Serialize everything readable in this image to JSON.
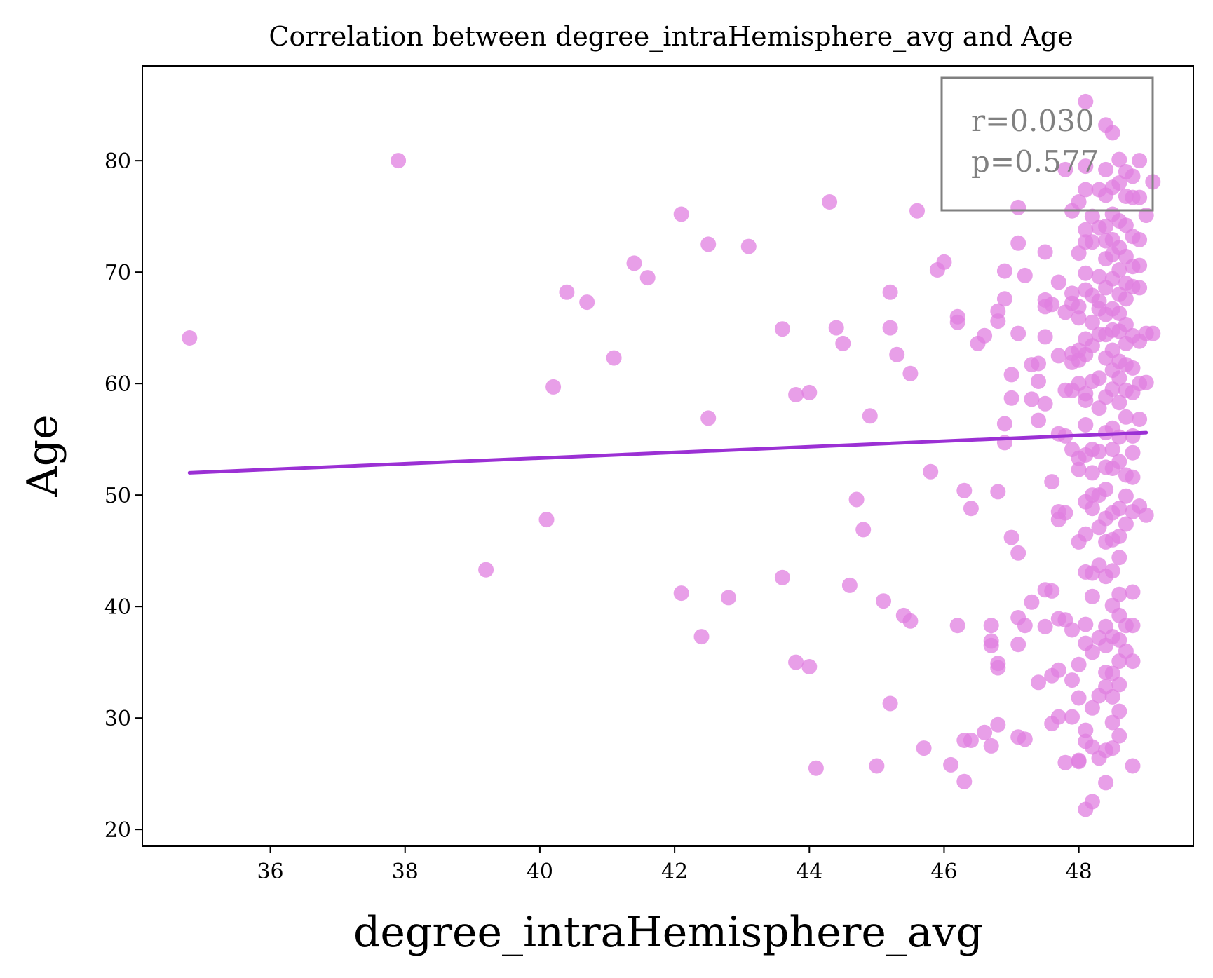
{
  "chart_data": {
    "type": "scatter",
    "title": "Correlation between degree_intraHemisphere_avg and Age",
    "xlabel": "degree_intraHemisphere_avg",
    "ylabel": "Age",
    "xlim": [
      34.1,
      49.7
    ],
    "ylim": [
      18.5,
      88.5
    ],
    "xticks": [
      36,
      38,
      40,
      42,
      44,
      46,
      48
    ],
    "yticks": [
      20,
      30,
      40,
      50,
      60,
      70,
      80
    ],
    "grid": false,
    "annotation": {
      "lines": [
        "r=0.030",
        "p=0.577"
      ],
      "placement": "top-right"
    },
    "colors": {
      "points": "#e07fe0",
      "fit_line": "#9b30d4",
      "annotation": "#808080"
    },
    "fit_line": {
      "x": [
        34.8,
        49.0
      ],
      "y": [
        52.0,
        55.6
      ]
    },
    "points": [
      [
        34.8,
        64.1
      ],
      [
        37.9,
        80.0
      ],
      [
        39.2,
        43.3
      ],
      [
        40.1,
        47.8
      ],
      [
        40.2,
        59.7
      ],
      [
        40.4,
        68.2
      ],
      [
        40.7,
        67.3
      ],
      [
        41.1,
        62.3
      ],
      [
        41.4,
        70.8
      ],
      [
        41.6,
        69.5
      ],
      [
        42.1,
        75.2
      ],
      [
        42.1,
        41.2
      ],
      [
        42.4,
        37.3
      ],
      [
        42.5,
        72.5
      ],
      [
        42.5,
        56.9
      ],
      [
        42.8,
        40.8
      ],
      [
        43.1,
        72.3
      ],
      [
        43.6,
        64.9
      ],
      [
        43.6,
        42.6
      ],
      [
        43.8,
        35.0
      ],
      [
        43.8,
        59.0
      ],
      [
        44.0,
        59.2
      ],
      [
        44.0,
        34.6
      ],
      [
        44.1,
        25.5
      ],
      [
        44.3,
        76.3
      ],
      [
        44.4,
        65.0
      ],
      [
        44.5,
        63.6
      ],
      [
        44.6,
        41.9
      ],
      [
        44.7,
        49.6
      ],
      [
        44.8,
        46.9
      ],
      [
        44.9,
        57.1
      ],
      [
        45.0,
        25.7
      ],
      [
        45.1,
        40.5
      ],
      [
        45.2,
        68.2
      ],
      [
        45.2,
        65.0
      ],
      [
        45.2,
        31.3
      ],
      [
        45.3,
        62.6
      ],
      [
        45.4,
        39.2
      ],
      [
        45.5,
        38.7
      ],
      [
        45.5,
        60.9
      ],
      [
        45.6,
        75.5
      ],
      [
        45.7,
        27.3
      ],
      [
        45.8,
        52.1
      ],
      [
        45.9,
        70.2
      ],
      [
        46.0,
        70.9
      ],
      [
        46.1,
        25.8
      ],
      [
        46.2,
        66.0
      ],
      [
        46.2,
        65.5
      ],
      [
        46.2,
        38.3
      ],
      [
        46.3,
        50.4
      ],
      [
        46.3,
        24.3
      ],
      [
        46.3,
        28.0
      ],
      [
        46.4,
        48.8
      ],
      [
        46.4,
        28.0
      ],
      [
        46.5,
        63.6
      ],
      [
        46.6,
        64.3
      ],
      [
        46.6,
        28.7
      ],
      [
        46.7,
        36.5
      ],
      [
        46.7,
        36.9
      ],
      [
        46.7,
        38.3
      ],
      [
        46.7,
        27.5
      ],
      [
        46.8,
        65.6
      ],
      [
        46.8,
        66.5
      ],
      [
        46.8,
        34.9
      ],
      [
        46.8,
        34.5
      ],
      [
        46.8,
        29.4
      ],
      [
        46.8,
        50.3
      ],
      [
        46.9,
        70.1
      ],
      [
        46.9,
        67.6
      ],
      [
        46.9,
        56.4
      ],
      [
        46.9,
        54.7
      ],
      [
        47.0,
        60.8
      ],
      [
        47.0,
        46.2
      ],
      [
        47.0,
        58.7
      ],
      [
        47.1,
        72.6
      ],
      [
        47.1,
        75.8
      ],
      [
        47.1,
        64.5
      ],
      [
        47.1,
        44.8
      ],
      [
        47.1,
        36.6
      ],
      [
        47.1,
        39.0
      ],
      [
        47.1,
        28.3
      ],
      [
        47.2,
        69.7
      ],
      [
        47.2,
        28.1
      ],
      [
        47.2,
        38.3
      ],
      [
        47.3,
        61.7
      ],
      [
        47.3,
        58.6
      ],
      [
        47.3,
        40.4
      ],
      [
        47.4,
        61.8
      ],
      [
        47.4,
        60.2
      ],
      [
        47.4,
        56.7
      ],
      [
        47.4,
        33.2
      ],
      [
        47.5,
        71.8
      ],
      [
        47.5,
        67.5
      ],
      [
        47.5,
        66.9
      ],
      [
        47.5,
        64.2
      ],
      [
        47.5,
        58.2
      ],
      [
        47.5,
        41.5
      ],
      [
        47.5,
        38.2
      ],
      [
        47.6,
        51.2
      ],
      [
        47.6,
        29.5
      ],
      [
        47.6,
        33.8
      ],
      [
        47.6,
        41.4
      ],
      [
        47.6,
        67.1
      ],
      [
        47.7,
        69.1
      ],
      [
        47.7,
        62.5
      ],
      [
        47.7,
        55.5
      ],
      [
        47.7,
        48.5
      ],
      [
        47.7,
        47.8
      ],
      [
        47.7,
        38.9
      ],
      [
        47.7,
        34.3
      ],
      [
        47.7,
        30.1
      ],
      [
        47.8,
        66.4
      ],
      [
        47.8,
        59.4
      ],
      [
        47.8,
        55.3
      ],
      [
        47.8,
        48.4
      ],
      [
        47.8,
        38.8
      ],
      [
        47.8,
        26.0
      ],
      [
        47.8,
        79.2
      ],
      [
        47.9,
        75.5
      ],
      [
        47.9,
        68.1
      ],
      [
        47.9,
        67.2
      ],
      [
        47.9,
        62.7
      ],
      [
        47.9,
        59.4
      ],
      [
        47.9,
        54.1
      ],
      [
        47.9,
        37.9
      ],
      [
        47.9,
        33.4
      ],
      [
        47.9,
        30.1
      ],
      [
        48.0,
        76.3
      ],
      [
        48.0,
        71.7
      ],
      [
        48.0,
        65.9
      ],
      [
        48.0,
        63.0
      ],
      [
        48.0,
        62.1
      ],
      [
        48.0,
        60.0
      ],
      [
        48.0,
        53.3
      ],
      [
        48.0,
        52.3
      ],
      [
        48.0,
        45.8
      ],
      [
        48.0,
        34.8
      ],
      [
        48.0,
        31.8
      ],
      [
        48.0,
        26.1
      ],
      [
        48.0,
        26.2
      ],
      [
        48.1,
        85.3
      ],
      [
        48.1,
        79.5
      ],
      [
        48.1,
        77.4
      ],
      [
        48.1,
        73.8
      ],
      [
        48.1,
        72.7
      ],
      [
        48.1,
        69.9
      ],
      [
        48.1,
        68.4
      ],
      [
        48.1,
        64.0
      ],
      [
        48.1,
        62.6
      ],
      [
        48.1,
        59.1
      ],
      [
        48.1,
        58.5
      ],
      [
        48.1,
        56.3
      ],
      [
        48.1,
        53.6
      ],
      [
        48.1,
        49.4
      ],
      [
        48.1,
        46.5
      ],
      [
        48.1,
        43.1
      ],
      [
        48.1,
        38.4
      ],
      [
        48.1,
        36.7
      ],
      [
        48.1,
        28.9
      ],
      [
        48.1,
        27.9
      ],
      [
        48.1,
        21.8
      ],
      [
        48.2,
        75.0
      ],
      [
        48.2,
        72.7
      ],
      [
        48.2,
        67.9
      ],
      [
        48.2,
        65.5
      ],
      [
        48.2,
        63.4
      ],
      [
        48.2,
        60.2
      ],
      [
        48.2,
        54.1
      ],
      [
        48.2,
        52.0
      ],
      [
        48.2,
        50.0
      ],
      [
        48.2,
        48.8
      ],
      [
        48.2,
        43.0
      ],
      [
        48.2,
        40.9
      ],
      [
        48.2,
        35.9
      ],
      [
        48.2,
        30.9
      ],
      [
        48.2,
        27.4
      ],
      [
        48.2,
        22.5
      ],
      [
        48.3,
        77.4
      ],
      [
        48.3,
        74.0
      ],
      [
        48.3,
        69.6
      ],
      [
        48.3,
        67.4
      ],
      [
        48.3,
        66.7
      ],
      [
        48.3,
        64.4
      ],
      [
        48.3,
        60.5
      ],
      [
        48.3,
        57.8
      ],
      [
        48.3,
        53.9
      ],
      [
        48.3,
        50.0
      ],
      [
        48.3,
        47.1
      ],
      [
        48.3,
        43.7
      ],
      [
        48.3,
        37.2
      ],
      [
        48.3,
        32.0
      ],
      [
        48.3,
        26.4
      ],
      [
        48.4,
        83.2
      ],
      [
        48.4,
        79.2
      ],
      [
        48.4,
        76.9
      ],
      [
        48.4,
        74.1
      ],
      [
        48.4,
        72.8
      ],
      [
        48.4,
        71.2
      ],
      [
        48.4,
        68.6
      ],
      [
        48.4,
        66.2
      ],
      [
        48.4,
        64.4
      ],
      [
        48.4,
        62.3
      ],
      [
        48.4,
        58.8
      ],
      [
        48.4,
        55.6
      ],
      [
        48.4,
        52.5
      ],
      [
        48.4,
        50.5
      ],
      [
        48.4,
        47.9
      ],
      [
        48.4,
        45.8
      ],
      [
        48.4,
        42.7
      ],
      [
        48.4,
        38.2
      ],
      [
        48.4,
        36.5
      ],
      [
        48.4,
        34.1
      ],
      [
        48.4,
        32.8
      ],
      [
        48.4,
        27.1
      ],
      [
        48.4,
        24.2
      ],
      [
        48.5,
        82.5
      ],
      [
        48.5,
        77.6
      ],
      [
        48.5,
        75.2
      ],
      [
        48.5,
        72.9
      ],
      [
        48.5,
        71.6
      ],
      [
        48.5,
        69.4
      ],
      [
        48.5,
        66.7
      ],
      [
        48.5,
        64.8
      ],
      [
        48.5,
        63.0
      ],
      [
        48.5,
        61.2
      ],
      [
        48.5,
        59.5
      ],
      [
        48.5,
        56.0
      ],
      [
        48.5,
        54.1
      ],
      [
        48.5,
        52.4
      ],
      [
        48.5,
        48.4
      ],
      [
        48.5,
        46.0
      ],
      [
        48.5,
        43.2
      ],
      [
        48.5,
        40.1
      ],
      [
        48.5,
        37.3
      ],
      [
        48.5,
        34.0
      ],
      [
        48.5,
        31.9
      ],
      [
        48.5,
        29.6
      ],
      [
        48.5,
        27.3
      ],
      [
        48.6,
        80.1
      ],
      [
        48.6,
        78.0
      ],
      [
        48.6,
        74.6
      ],
      [
        48.6,
        72.2
      ],
      [
        48.6,
        70.2
      ],
      [
        48.6,
        68.0
      ],
      [
        48.6,
        66.3
      ],
      [
        48.6,
        64.7
      ],
      [
        48.6,
        62.0
      ],
      [
        48.6,
        60.5
      ],
      [
        48.6,
        58.3
      ],
      [
        48.6,
        55.2
      ],
      [
        48.6,
        53.0
      ],
      [
        48.6,
        48.8
      ],
      [
        48.6,
        46.3
      ],
      [
        48.6,
        44.4
      ],
      [
        48.6,
        41.1
      ],
      [
        48.6,
        39.2
      ],
      [
        48.6,
        37.0
      ],
      [
        48.6,
        35.1
      ],
      [
        48.6,
        33.0
      ],
      [
        48.6,
        30.6
      ],
      [
        48.6,
        28.4
      ],
      [
        48.7,
        79.0
      ],
      [
        48.7,
        76.8
      ],
      [
        48.7,
        74.2
      ],
      [
        48.7,
        71.4
      ],
      [
        48.7,
        69.0
      ],
      [
        48.7,
        67.6
      ],
      [
        48.7,
        65.3
      ],
      [
        48.7,
        63.6
      ],
      [
        48.7,
        61.7
      ],
      [
        48.7,
        59.4
      ],
      [
        48.7,
        57.0
      ],
      [
        48.7,
        51.8
      ],
      [
        48.7,
        49.9
      ],
      [
        48.7,
        47.4
      ],
      [
        48.7,
        38.3
      ],
      [
        48.7,
        36.0
      ],
      [
        48.8,
        78.6
      ],
      [
        48.8,
        76.7
      ],
      [
        48.8,
        73.2
      ],
      [
        48.8,
        70.5
      ],
      [
        48.8,
        68.7
      ],
      [
        48.8,
        64.3
      ],
      [
        48.8,
        61.4
      ],
      [
        48.8,
        59.2
      ],
      [
        48.8,
        55.3
      ],
      [
        48.8,
        53.8
      ],
      [
        48.8,
        51.6
      ],
      [
        48.8,
        48.5
      ],
      [
        48.8,
        41.3
      ],
      [
        48.8,
        38.3
      ],
      [
        48.8,
        35.1
      ],
      [
        48.8,
        25.7
      ],
      [
        48.9,
        80.0
      ],
      [
        48.9,
        76.7
      ],
      [
        48.9,
        72.9
      ],
      [
        48.9,
        70.6
      ],
      [
        48.9,
        68.6
      ],
      [
        48.9,
        63.8
      ],
      [
        48.9,
        60.0
      ],
      [
        48.9,
        56.8
      ],
      [
        48.9,
        49.0
      ],
      [
        49.0,
        75.1
      ],
      [
        49.0,
        64.5
      ],
      [
        49.0,
        60.1
      ],
      [
        49.0,
        48.2
      ],
      [
        49.1,
        78.1
      ],
      [
        49.1,
        64.5
      ],
      [
        48.0,
        66.9
      ],
      [
        47.9,
        61.9
      ]
    ]
  }
}
